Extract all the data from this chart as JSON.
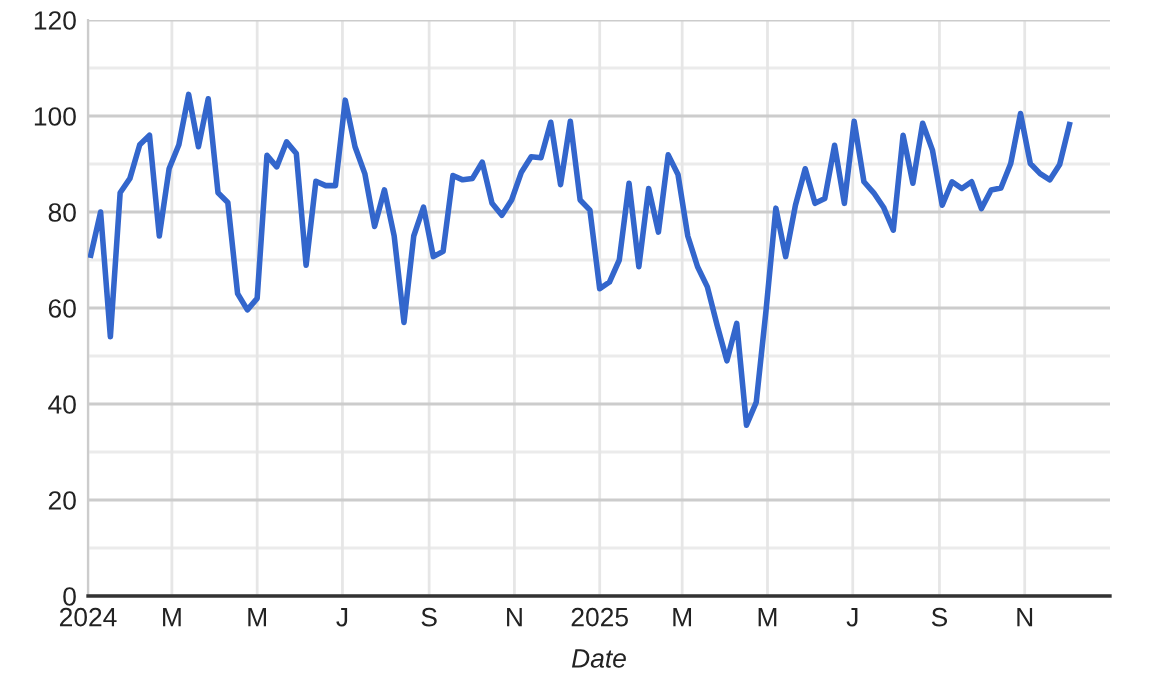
{
  "chart_data": {
    "type": "line",
    "xlabel": "Date",
    "x": [
      "2024-01-03",
      "2024-01-10",
      "2024-01-17",
      "2024-01-24",
      "2024-01-31",
      "2024-02-07",
      "2024-02-14",
      "2024-02-21",
      "2024-02-28",
      "2024-03-06",
      "2024-03-13",
      "2024-03-20",
      "2024-03-27",
      "2024-04-03",
      "2024-04-10",
      "2024-04-17",
      "2024-04-24",
      "2024-05-01",
      "2024-05-08",
      "2024-05-15",
      "2024-05-22",
      "2024-05-29",
      "2024-06-05",
      "2024-06-12",
      "2024-06-19",
      "2024-06-26",
      "2024-07-03",
      "2024-07-10",
      "2024-07-17",
      "2024-07-24",
      "2024-07-31",
      "2024-08-07",
      "2024-08-14",
      "2024-08-21",
      "2024-08-28",
      "2024-09-04",
      "2024-09-11",
      "2024-09-18",
      "2024-09-25",
      "2024-10-02",
      "2024-10-09",
      "2024-10-16",
      "2024-10-23",
      "2024-10-30",
      "2024-11-06",
      "2024-11-13",
      "2024-11-20",
      "2024-11-27",
      "2024-12-04",
      "2024-12-11",
      "2024-12-18",
      "2024-12-25",
      "2025-01-01",
      "2025-01-08",
      "2025-01-15",
      "2025-01-22",
      "2025-01-29",
      "2025-02-05",
      "2025-02-12",
      "2025-02-19",
      "2025-02-26",
      "2025-03-05",
      "2025-03-12",
      "2025-03-19",
      "2025-03-26",
      "2025-04-02",
      "2025-04-09",
      "2025-04-16",
      "2025-04-23",
      "2025-04-30",
      "2025-05-07",
      "2025-05-14",
      "2025-05-21",
      "2025-05-28",
      "2025-06-04",
      "2025-06-11",
      "2025-06-18",
      "2025-06-25",
      "2025-07-02",
      "2025-07-09",
      "2025-07-16",
      "2025-07-23",
      "2025-07-30",
      "2025-08-06",
      "2025-08-13",
      "2025-08-20",
      "2025-08-27",
      "2025-09-03",
      "2025-09-10",
      "2025-09-17",
      "2025-09-24",
      "2025-10-01",
      "2025-10-08",
      "2025-10-15",
      "2025-10-22",
      "2025-10-29",
      "2025-11-05",
      "2025-11-12",
      "2025-11-19",
      "2025-11-26",
      "2025-12-03"
    ],
    "series": [
      {
        "color": "#3366cc",
        "values": [
          71,
          80,
          54,
          84,
          87,
          94,
          96,
          75,
          89,
          94,
          104.5,
          93.6,
          103.6,
          84,
          82,
          63,
          59.6,
          62,
          91.8,
          89.4,
          94.6,
          92.2,
          68.9,
          86.4,
          85.5,
          85.5,
          103.3,
          93.6,
          88,
          77,
          84.6,
          75,
          57,
          75,
          81,
          70.7,
          71.8,
          87.6,
          86.7,
          87,
          90.4,
          81.8,
          79.3,
          82.5,
          88.3,
          91.5,
          91.3,
          98.7,
          85.7,
          98.9,
          82.5,
          80.4,
          64,
          65.4,
          70,
          86,
          68.6,
          84.9,
          75.8,
          91.9,
          87.8,
          75,
          68.6,
          64.4,
          56.4,
          49,
          56.8,
          35.6,
          40.4,
          59.6,
          80.8,
          70.7,
          81.4,
          89,
          81.8,
          82.8,
          93.9,
          81.8,
          98.9,
          86.3,
          84,
          81,
          76.2,
          96,
          86,
          98.5,
          92.9,
          81.4,
          86.3,
          84.9,
          86.3,
          80.7,
          84.6,
          85,
          90.1,
          100.5,
          90.1,
          88,
          86.7,
          89.9,
          98.2
        ]
      }
    ],
    "xlim": [
      "2024-01-01",
      "2026-01-01"
    ],
    "xticks": [
      {
        "value": "2024-01-01",
        "label": "2024"
      },
      {
        "value": "2024-03-01",
        "label": "M"
      },
      {
        "value": "2024-05-01",
        "label": "M"
      },
      {
        "value": "2024-07-01",
        "label": "J"
      },
      {
        "value": "2024-09-01",
        "label": "S"
      },
      {
        "value": "2024-11-01",
        "label": "N"
      },
      {
        "value": "2025-01-01",
        "label": "2025"
      },
      {
        "value": "2025-03-01",
        "label": "M"
      },
      {
        "value": "2025-05-01",
        "label": "M"
      },
      {
        "value": "2025-07-01",
        "label": "J"
      },
      {
        "value": "2025-09-01",
        "label": "S"
      },
      {
        "value": "2025-11-01",
        "label": "N"
      }
    ],
    "ylim": [
      0,
      120
    ],
    "yticks": [
      0,
      20,
      40,
      60,
      80,
      100,
      120
    ],
    "grid": true,
    "marker": "none",
    "line_style": "solid"
  }
}
